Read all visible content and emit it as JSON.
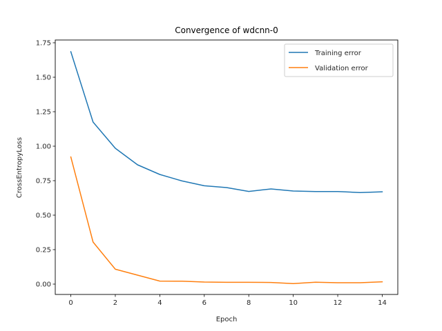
{
  "chart_data": {
    "type": "line",
    "title": "Convergence of wdcnn-0",
    "xlabel": "Epoch",
    "ylabel": "CrossEntropyLoss",
    "x": [
      0,
      1,
      2,
      3,
      4,
      5,
      6,
      7,
      8,
      9,
      10,
      11,
      12,
      13,
      14
    ],
    "xlim": [
      -0.7,
      14.7
    ],
    "ylim": [
      -0.075,
      1.77
    ],
    "xticks": [
      0,
      2,
      4,
      6,
      8,
      10,
      12,
      14
    ],
    "xtick_labels": [
      "0",
      "2",
      "4",
      "6",
      "8",
      "10",
      "12",
      "14"
    ],
    "yticks": [
      0.0,
      0.25,
      0.5,
      0.75,
      1.0,
      1.25,
      1.5,
      1.75
    ],
    "ytick_labels": [
      "0.00",
      "0.25",
      "0.50",
      "0.75",
      "1.00",
      "1.25",
      "1.50",
      "1.75"
    ],
    "grid": false,
    "legend_position": "top-right",
    "series": [
      {
        "name": "Training error",
        "color": "#1f77b4",
        "values": [
          1.685,
          1.175,
          0.985,
          0.865,
          0.795,
          0.748,
          0.713,
          0.7,
          0.672,
          0.69,
          0.675,
          0.671,
          0.671,
          0.664,
          0.669
        ]
      },
      {
        "name": "Validation error",
        "color": "#ff7f0e",
        "values": [
          0.922,
          0.305,
          0.108,
          0.065,
          0.022,
          0.021,
          0.015,
          0.013,
          0.013,
          0.012,
          0.004,
          0.014,
          0.01,
          0.01,
          0.017
        ]
      }
    ]
  }
}
